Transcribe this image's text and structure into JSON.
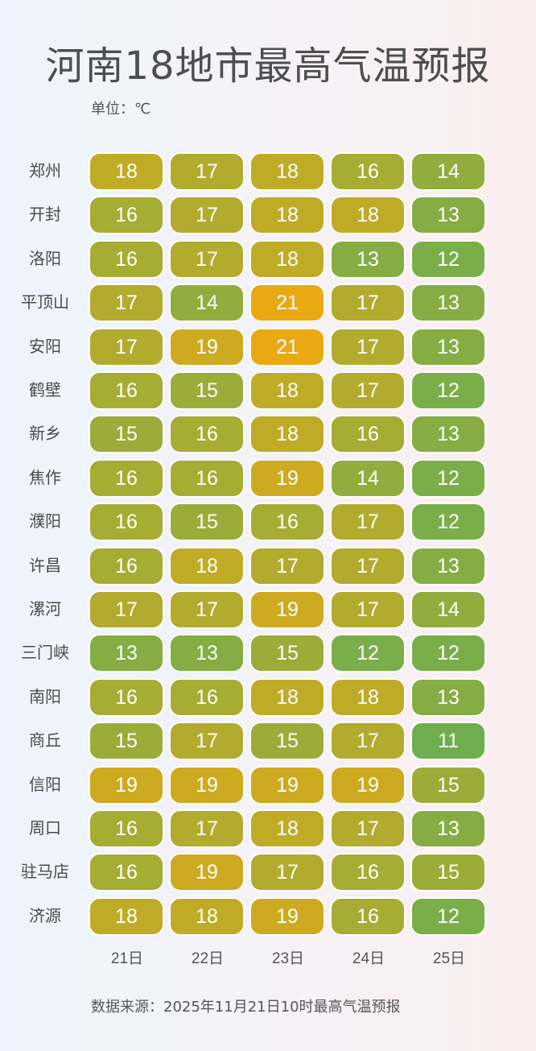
{
  "title": "河南18地市最高气温预报",
  "unit": "单位：℃",
  "source": "数据来源：2025年11月21日10时最高气温预报",
  "colors": {
    "cold": "#6fae4e",
    "mid": "#b2ab2e",
    "hot": "#e8a912",
    "text": "#ffffff"
  },
  "chart_data": {
    "type": "heatmap",
    "title": "河南18地市最高气温预报",
    "unit": "℃",
    "x": [
      "21日",
      "22日",
      "23日",
      "24日",
      "25日"
    ],
    "y": [
      "郑州",
      "开封",
      "洛阳",
      "平顶山",
      "安阳",
      "鹤壁",
      "新乡",
      "焦作",
      "濮阳",
      "许昌",
      "漯河",
      "三门峡",
      "南阳",
      "商丘",
      "信阳",
      "周口",
      "驻马店",
      "济源"
    ],
    "values": [
      [
        18,
        17,
        18,
        16,
        14
      ],
      [
        16,
        17,
        18,
        18,
        13
      ],
      [
        16,
        17,
        18,
        13,
        12
      ],
      [
        17,
        14,
        21,
        17,
        13
      ],
      [
        17,
        19,
        21,
        17,
        13
      ],
      [
        16,
        15,
        18,
        17,
        12
      ],
      [
        15,
        16,
        18,
        16,
        13
      ],
      [
        16,
        16,
        19,
        14,
        12
      ],
      [
        16,
        15,
        16,
        17,
        12
      ],
      [
        16,
        18,
        17,
        17,
        13
      ],
      [
        17,
        17,
        19,
        17,
        14
      ],
      [
        13,
        13,
        15,
        12,
        12
      ],
      [
        16,
        16,
        18,
        18,
        13
      ],
      [
        15,
        17,
        15,
        17,
        11
      ],
      [
        19,
        19,
        19,
        19,
        15
      ],
      [
        16,
        17,
        18,
        17,
        13
      ],
      [
        16,
        19,
        17,
        16,
        15
      ],
      [
        18,
        18,
        19,
        16,
        12
      ]
    ],
    "color_range": [
      11,
      21
    ],
    "source": "数据来源：2025年11月21日10时最高气温预报"
  }
}
